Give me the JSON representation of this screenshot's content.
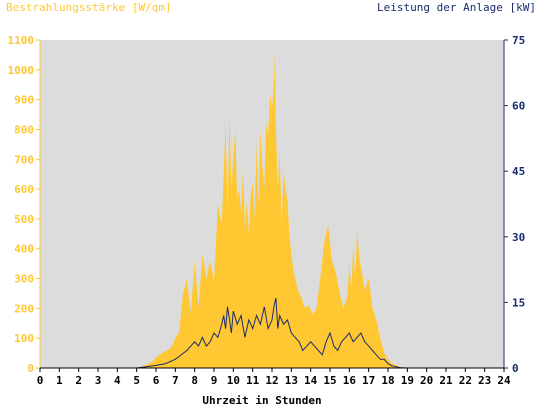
{
  "chart_data": {
    "type": "area",
    "left_axis_label": "Bestrahlungsstärke [W/qm]",
    "right_axis_label": "Leistung der Anlage [kW]",
    "xlabel": "Uhrzeit in Stunden",
    "xlim": [
      0,
      24
    ],
    "ylim_left": [
      0,
      1100
    ],
    "ylim_right": [
      0,
      75
    ],
    "x_ticks": [
      "0",
      "1",
      "2",
      "3",
      "4",
      "5",
      "6",
      "7",
      "8",
      "9",
      "10",
      "11",
      "12",
      "13",
      "14",
      "15",
      "16",
      "17",
      "18",
      "19",
      "20",
      "21",
      "22",
      "23",
      "24"
    ],
    "left_ticks": [
      "0",
      "100",
      "200",
      "300",
      "400",
      "500",
      "600",
      "700",
      "800",
      "900",
      "1000",
      "1100"
    ],
    "right_ticks": [
      "0",
      "15",
      "30",
      "45",
      "60",
      "75"
    ],
    "grid": false,
    "colors": {
      "plot_bg": "#dcdcdc",
      "irradiance": "#ffc832",
      "power": "#1a2b6e",
      "left_axis": "#ffc832",
      "right_axis": "#1a2b6e",
      "bottom_axis": "#000000"
    },
    "series": [
      {
        "name": "Bestrahlungsstärke [W/qm]",
        "axis": "left",
        "x": [
          0,
          5,
          5.2,
          5.5,
          5.8,
          6.0,
          6.3,
          6.6,
          6.8,
          7.0,
          7.2,
          7.4,
          7.6,
          7.8,
          8.0,
          8.2,
          8.4,
          8.6,
          8.8,
          9.0,
          9.2,
          9.4,
          9.5,
          9.6,
          9.7,
          9.8,
          9.9,
          10.0,
          10.1,
          10.2,
          10.3,
          10.4,
          10.5,
          10.6,
          10.7,
          10.8,
          10.9,
          11.0,
          11.1,
          11.2,
          11.3,
          11.4,
          11.5,
          11.6,
          11.7,
          11.8,
          11.9,
          12.0,
          12.1,
          12.15,
          12.2,
          12.3,
          12.4,
          12.5,
          12.6,
          12.7,
          12.8,
          12.9,
          13.0,
          13.1,
          13.2,
          13.3,
          13.4,
          13.5,
          13.7,
          13.9,
          14.1,
          14.3,
          14.5,
          14.7,
          14.9,
          15.1,
          15.3,
          15.5,
          15.7,
          15.9,
          16.0,
          16.1,
          16.2,
          16.3,
          16.4,
          16.5,
          16.6,
          16.7,
          16.8,
          17.0,
          17.2,
          17.4,
          17.6,
          17.8,
          18.0,
          18.2,
          18.4,
          18.6,
          18.8,
          19.0,
          19.3,
          19.6,
          20,
          24
        ],
        "values": [
          0,
          0,
          5,
          10,
          20,
          35,
          50,
          60,
          70,
          100,
          120,
          250,
          300,
          180,
          360,
          200,
          380,
          300,
          360,
          290,
          550,
          480,
          650,
          820,
          520,
          850,
          600,
          700,
          800,
          560,
          600,
          520,
          670,
          470,
          560,
          450,
          580,
          620,
          500,
          750,
          540,
          800,
          680,
          600,
          820,
          780,
          920,
          870,
          950,
          1060,
          800,
          600,
          720,
          480,
          660,
          600,
          560,
          450,
          380,
          330,
          300,
          270,
          250,
          240,
          200,
          210,
          180,
          200,
          300,
          420,
          480,
          360,
          320,
          250,
          200,
          240,
          350,
          260,
          410,
          300,
          460,
          380,
          340,
          300,
          260,
          300,
          200,
          160,
          100,
          50,
          30,
          15,
          10,
          5,
          0,
          0,
          0,
          0,
          0,
          0
        ]
      },
      {
        "name": "Leistung der Anlage [kW]",
        "axis": "right",
        "x": [
          0,
          5,
          5.5,
          6.0,
          6.5,
          7.0,
          7.3,
          7.6,
          7.8,
          8.0,
          8.2,
          8.4,
          8.6,
          8.8,
          9.0,
          9.2,
          9.4,
          9.5,
          9.6,
          9.7,
          9.8,
          9.9,
          10.0,
          10.2,
          10.4,
          10.6,
          10.8,
          11.0,
          11.2,
          11.4,
          11.6,
          11.8,
          12.0,
          12.1,
          12.2,
          12.3,
          12.4,
          12.6,
          12.8,
          13.0,
          13.2,
          13.4,
          13.6,
          13.8,
          14.0,
          14.2,
          14.4,
          14.6,
          14.8,
          15.0,
          15.2,
          15.4,
          15.6,
          15.8,
          16.0,
          16.2,
          16.4,
          16.6,
          16.8,
          17.0,
          17.2,
          17.4,
          17.6,
          17.8,
          18.0,
          18.2,
          18.4,
          18.6,
          19.0,
          24
        ],
        "values": [
          0,
          0,
          0.3,
          0.6,
          1,
          2,
          3,
          4,
          5,
          6,
          5,
          7,
          5,
          6,
          8,
          7,
          10,
          12,
          9,
          14,
          11,
          8,
          13,
          10,
          12,
          7,
          11,
          9,
          12,
          10,
          14,
          9,
          11,
          14,
          16,
          9,
          12,
          10,
          11,
          8,
          7,
          6,
          4,
          5,
          6,
          5,
          4,
          3,
          6,
          8,
          5,
          4,
          6,
          7,
          8,
          6,
          7,
          8,
          6,
          5,
          4,
          3,
          2,
          2,
          1,
          0.5,
          0.3,
          0.1,
          0,
          0
        ]
      }
    ]
  }
}
